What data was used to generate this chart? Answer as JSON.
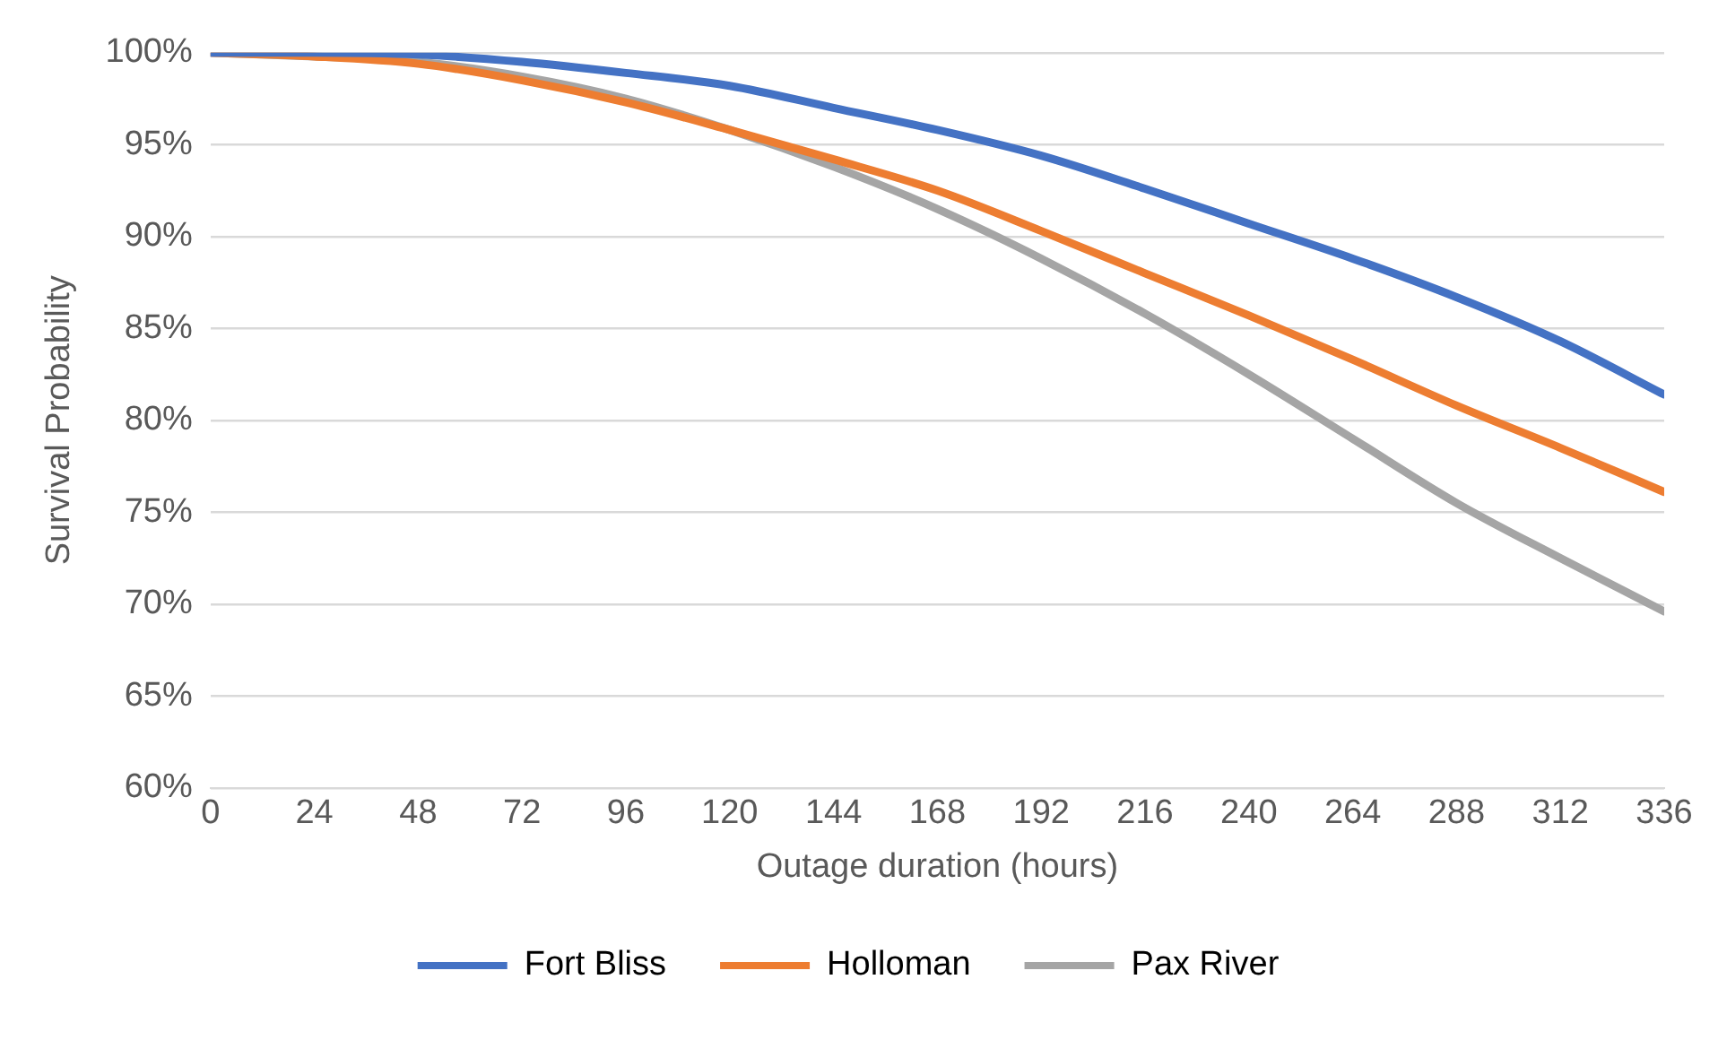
{
  "chart_data": {
    "type": "line",
    "xlabel": "Outage duration (hours)",
    "ylabel": "Survival Probability",
    "x": [
      0,
      24,
      48,
      72,
      96,
      120,
      144,
      168,
      192,
      216,
      240,
      264,
      288,
      312,
      336
    ],
    "series": [
      {
        "name": "Fort Bliss",
        "color": "#4472c4",
        "values": [
          100,
          100,
          99.9,
          99.5,
          98.9,
          98.2,
          97,
          95.8,
          94.4,
          92.6,
          90.7,
          88.8,
          86.7,
          84.3,
          81.4
        ]
      },
      {
        "name": "Holloman",
        "color": "#ed7d31",
        "values": [
          100,
          99.8,
          99.4,
          98.5,
          97.3,
          95.8,
          94.2,
          92.5,
          90.3,
          88,
          85.7,
          83.3,
          80.8,
          78.5,
          76.1
        ]
      },
      {
        "name": "Pax River",
        "color": "#a5a5a5",
        "values": [
          100,
          99.8,
          99.5,
          98.7,
          97.5,
          95.8,
          93.8,
          91.5,
          88.8,
          85.8,
          82.5,
          79,
          75.5,
          72.5,
          69.6
        ]
      }
    ],
    "xlim": [
      0,
      336
    ],
    "xticks": [
      0,
      24,
      48,
      72,
      96,
      120,
      144,
      168,
      192,
      216,
      240,
      264,
      288,
      312,
      336
    ],
    "ylim": [
      60,
      100
    ],
    "yticks": [
      {
        "value": 60,
        "label": "60%"
      },
      {
        "value": 65,
        "label": "65%"
      },
      {
        "value": 70,
        "label": "70%"
      },
      {
        "value": 75,
        "label": "75%"
      },
      {
        "value": 80,
        "label": "80%"
      },
      {
        "value": 85,
        "label": "85%"
      },
      {
        "value": 90,
        "label": "90%"
      },
      {
        "value": 95,
        "label": "95%"
      },
      {
        "value": 100,
        "label": "100%"
      }
    ],
    "grid": "y",
    "legend": "bottom",
    "marker": "none",
    "line_style": "solid"
  }
}
